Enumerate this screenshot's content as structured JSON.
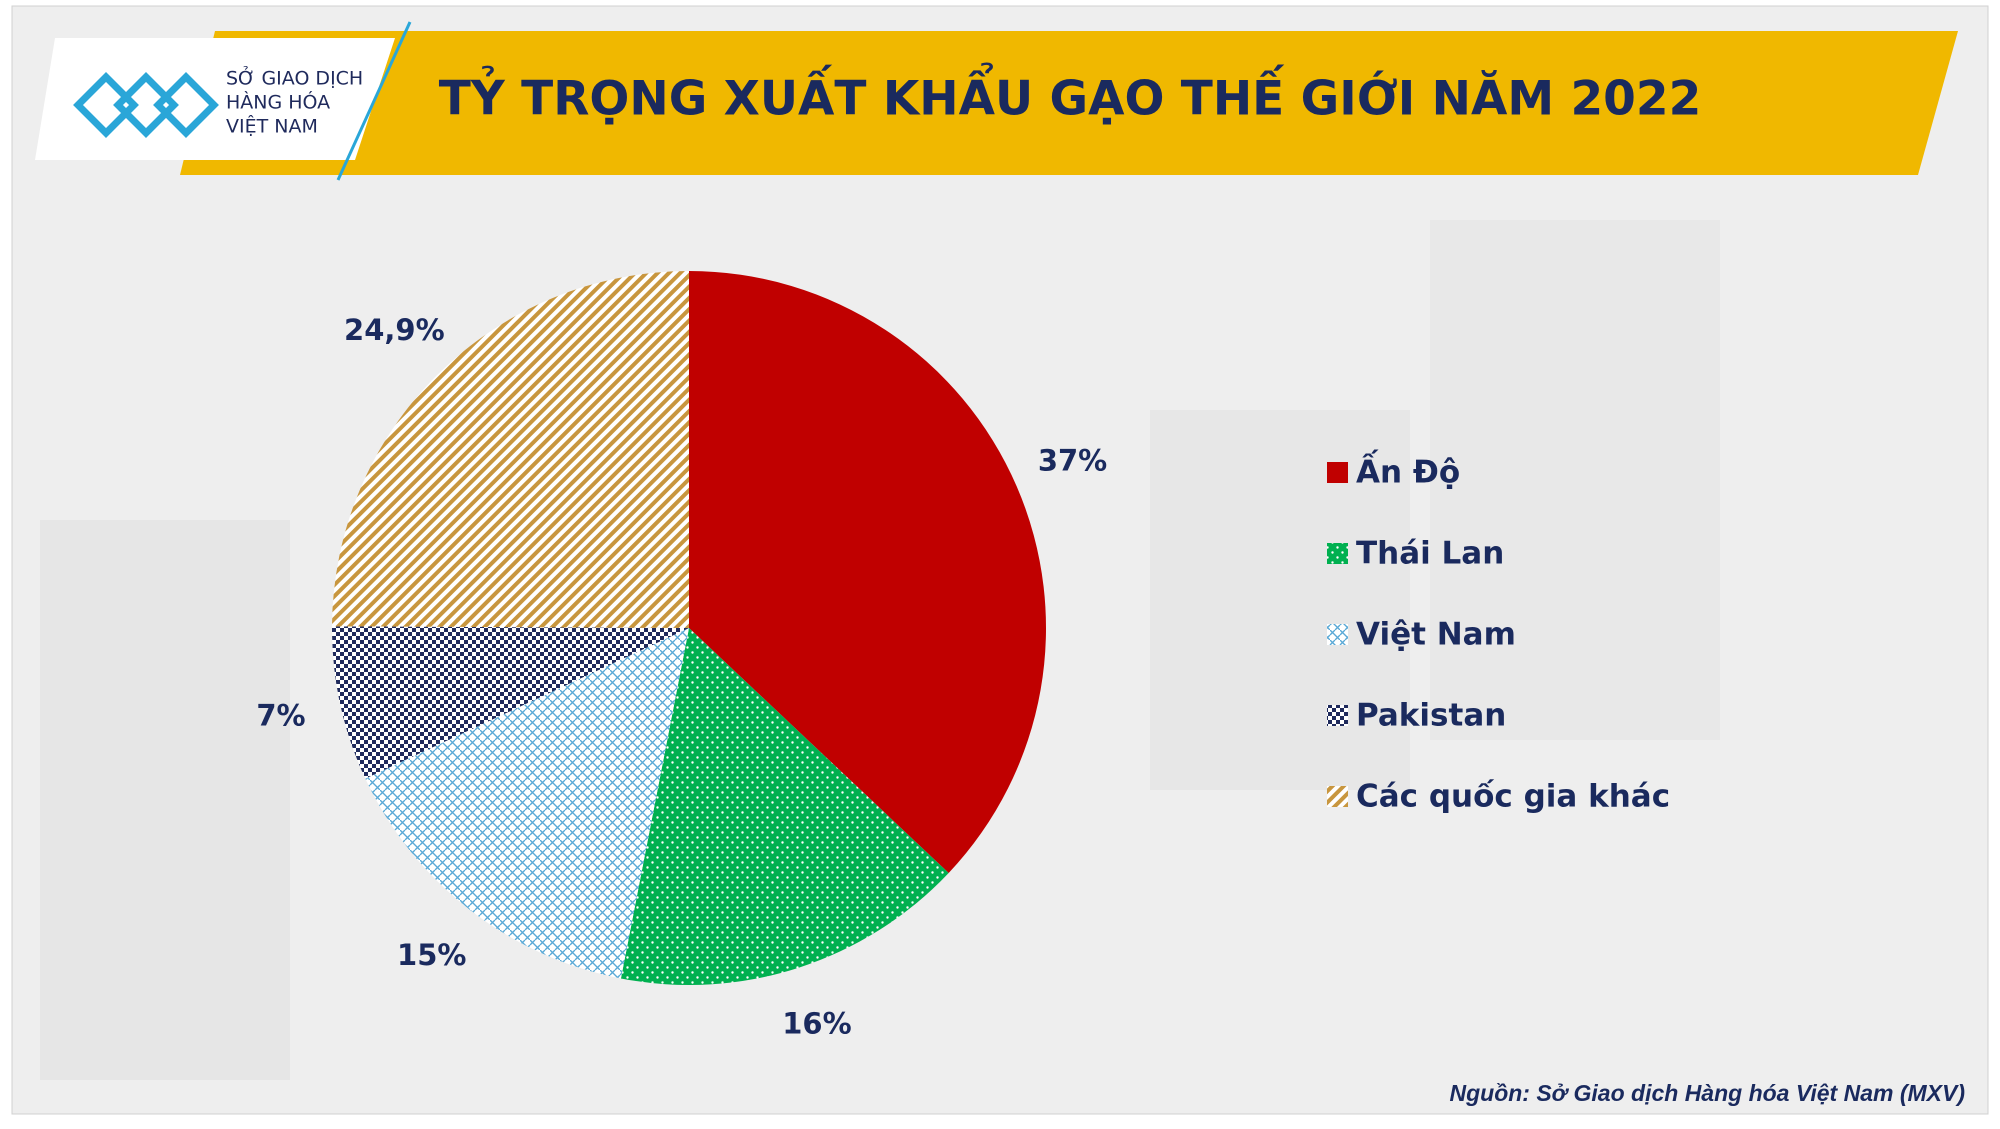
{
  "logo": [
    "SỞ GIAO DỊCH",
    "HÀNG HÓA",
    "VIỆT NAM"
  ],
  "chart_data": {
    "type": "pie",
    "title": "TỶ TRỌNG XUẤT KHẨU GẠO THẾ GIỚI NĂM 2022",
    "categories": [
      "Ấn Độ",
      "Thái Lan",
      "Việt Nam",
      "Pakistan",
      "Các quốc gia khác"
    ],
    "values": [
      37,
      16,
      15,
      7,
      24.9
    ],
    "value_labels": [
      "37%",
      "16%",
      "15%",
      "7%",
      "24,9%"
    ],
    "colors": [
      "#c00000",
      "#00b050",
      "#5aa9d6",
      "#1f2a5c",
      "#c8963e"
    ],
    "legend": "right"
  },
  "source": "Nguồn: Sở Giao dịch Hàng hóa Việt Nam (MXV)"
}
